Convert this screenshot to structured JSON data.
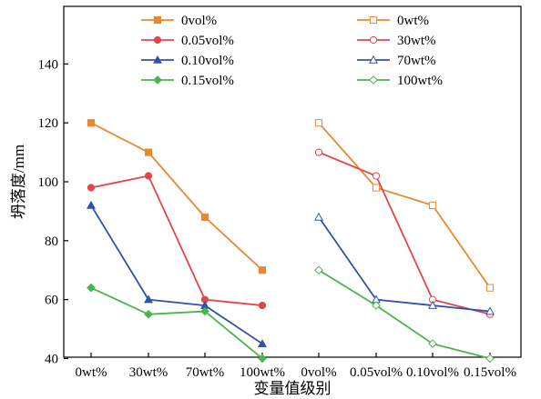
{
  "chart_data": {
    "type": "line",
    "title": "",
    "xlabel": "变量值级别",
    "ylabel": "坍落度/mm",
    "ylim": [
      30,
      150
    ],
    "yticks": [
      40,
      60,
      80,
      100,
      120,
      140
    ],
    "grid": false,
    "legend_position": "top",
    "categories": [
      "0wt%",
      "30wt%",
      "70wt%",
      "100wt%",
      "0vol%",
      "0.05vol%",
      "0.10vol%",
      "0.15vol%"
    ],
    "groups": [
      {
        "categories": [
          "0wt%",
          "30wt%",
          "70wt%",
          "100wt%"
        ],
        "series": [
          {
            "name": "0vol%",
            "color": "#E8892F",
            "marker": "square",
            "filled": true,
            "values": [
              120,
              110,
              88,
              70
            ]
          },
          {
            "name": "0.05vol%",
            "color": "#E0474C",
            "marker": "circle",
            "filled": true,
            "values": [
              98,
              102,
              60,
              58
            ]
          },
          {
            "name": "0.10vol%",
            "color": "#2F55A8",
            "marker": "triangle",
            "filled": true,
            "values": [
              92,
              60,
              58,
              45
            ]
          },
          {
            "name": "0.15vol%",
            "color": "#4CB44E",
            "marker": "diamond",
            "filled": true,
            "values": [
              64,
              55,
              56,
              40
            ]
          }
        ]
      },
      {
        "categories": [
          "0vol%",
          "0.05vol%",
          "0.10vol%",
          "0.15vol%"
        ],
        "series": [
          {
            "name": "0wt%",
            "color": "#E8892F",
            "marker": "square",
            "filled": false,
            "values": [
              120,
              98,
              92,
              64
            ]
          },
          {
            "name": "30wt%",
            "color": "#E0474C",
            "marker": "circle",
            "filled": false,
            "values": [
              110,
              102,
              60,
              55
            ]
          },
          {
            "name": "70wt%",
            "color": "#2F55A8",
            "marker": "triangle",
            "filled": false,
            "values": [
              88,
              60,
              58,
              56
            ]
          },
          {
            "name": "100wt%",
            "color": "#4CB44E",
            "marker": "diamond",
            "filled": false,
            "values": [
              70,
              58,
              45,
              40
            ]
          }
        ]
      }
    ]
  }
}
